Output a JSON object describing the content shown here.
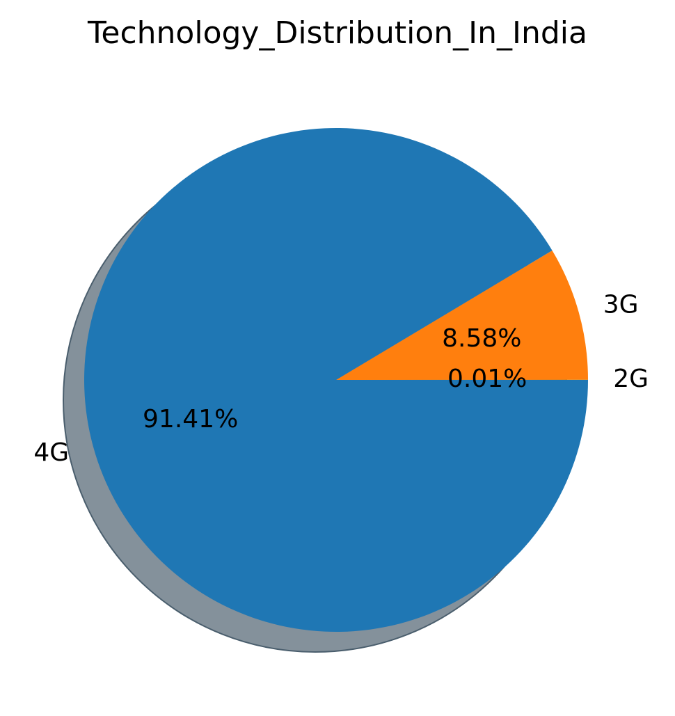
{
  "chart_data": {
    "type": "pie",
    "title": "Technology_Distribution_In_India",
    "labels": [
      "2G",
      "3G",
      "4G"
    ],
    "values": [
      0.01,
      8.58,
      91.41
    ],
    "percent_labels": [
      "0.01%",
      "8.58%",
      "91.41%"
    ],
    "colors": [
      "#2ca02c",
      "#ff7f0e",
      "#1f77b4"
    ],
    "shadow": true,
    "legend": "none"
  }
}
